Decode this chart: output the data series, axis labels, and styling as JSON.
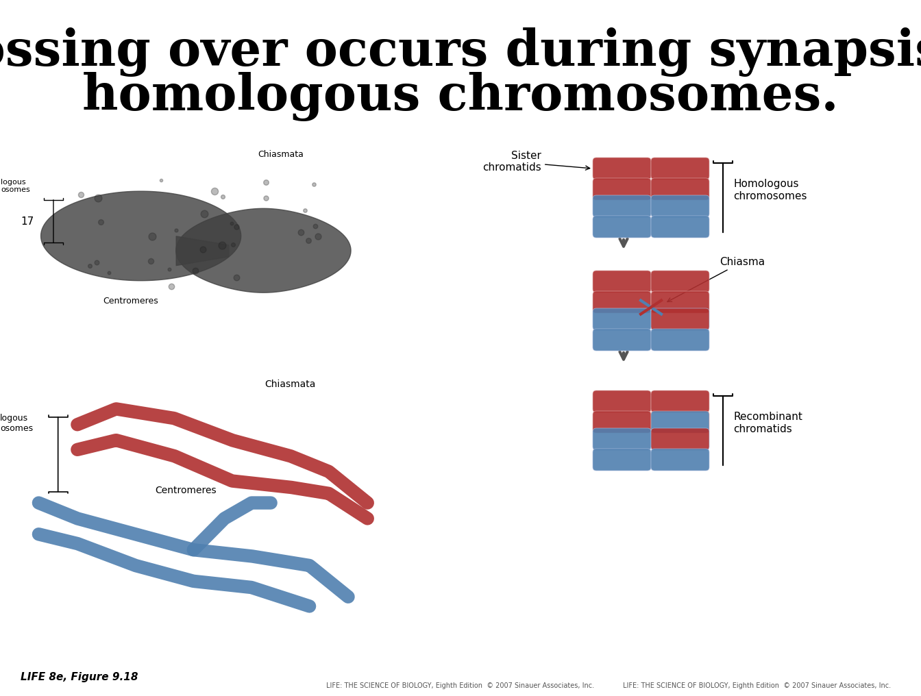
{
  "title_line1": "Crossing over occurs during synapsis of",
  "title_line2": "homologous chromosomes.",
  "title_fontsize": 52,
  "title_font": "serif",
  "background_color": "#ffffff",
  "footer_left": "LIFE 8e, Figure 9.18",
  "footer_right": "LIFE: THE SCIENCE OF BIOLOGY, Eighth Edition  © 2007 Sinauer Associates, Inc.",
  "photo_label_chiasmata": "Chiasmata",
  "photo_label_centromeres": "Centromeres",
  "photo_label_homologous": "logous\nosomes",
  "diagram_label_chiasmata": "Chiasmata",
  "diagram_label_centromeres": "Centromeres",
  "diagram_label_homologous": "logous\nosomes",
  "right_label_sister": "Sister\nchromatids",
  "right_label_homologous": "Homologous\nchromosomes",
  "right_label_chiasma": "Chiasma",
  "right_label_recombinant": "Recombinant\nchromatids",
  "copyright_bottom": "LIFE: THE SCIENCE OF BIOLOGY, Eighth Edition  © 2007 Sinauer Associates, Inc.",
  "red_color": "#b03030",
  "blue_color": "#5080b0",
  "red_light": "#c04040",
  "blue_light": "#6090c0"
}
